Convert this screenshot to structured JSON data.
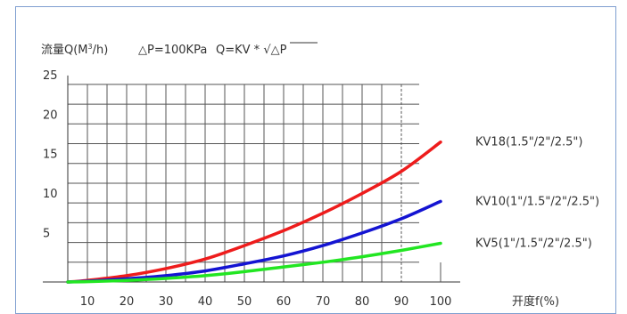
{
  "chart_data": {
    "type": "line",
    "title_prefix": "流量Q(M",
    "title_sup": "3",
    "title_suffix": "/h)",
    "pressure_label": "△P=100KPa",
    "formula_prefix": "Q=KV * ",
    "formula_sqrt_symbol": "√",
    "formula_radicand": "△P",
    "xlabel": "开度f(%)",
    "ylabel": "",
    "x_ticks": [
      10,
      20,
      30,
      40,
      50,
      60,
      70,
      80,
      90,
      100
    ],
    "y_ticks": [
      5,
      10,
      15,
      20,
      25
    ],
    "xlim": [
      5,
      105
    ],
    "ylim": [
      0,
      26
    ],
    "grid": true,
    "series": [
      {
        "name": "KV18(1.5\"/2\"/2.5\")",
        "color": "#ee1c1c",
        "x": [
          5,
          10,
          20,
          30,
          40,
          50,
          60,
          70,
          80,
          90,
          100
        ],
        "y": [
          0,
          0.2,
          0.8,
          1.7,
          2.9,
          4.6,
          6.5,
          8.7,
          11.2,
          14.0,
          17.7
        ]
      },
      {
        "name": "KV10(1\"/1.5\"/2\"/2.5\")",
        "color": "#1414d2",
        "x": [
          5,
          10,
          20,
          30,
          40,
          50,
          60,
          70,
          80,
          90,
          100
        ],
        "y": [
          0,
          0.1,
          0.4,
          0.8,
          1.4,
          2.3,
          3.3,
          4.6,
          6.2,
          8.0,
          10.2
        ]
      },
      {
        "name": "KV5(1\"/1.5\"/2\"/2.5\")",
        "color": "#22e622",
        "x": [
          5,
          10,
          20,
          30,
          40,
          50,
          60,
          70,
          80,
          90,
          100
        ],
        "y": [
          0,
          0.05,
          0.2,
          0.45,
          0.8,
          1.3,
          1.9,
          2.5,
          3.2,
          4.0,
          4.9
        ]
      }
    ]
  }
}
